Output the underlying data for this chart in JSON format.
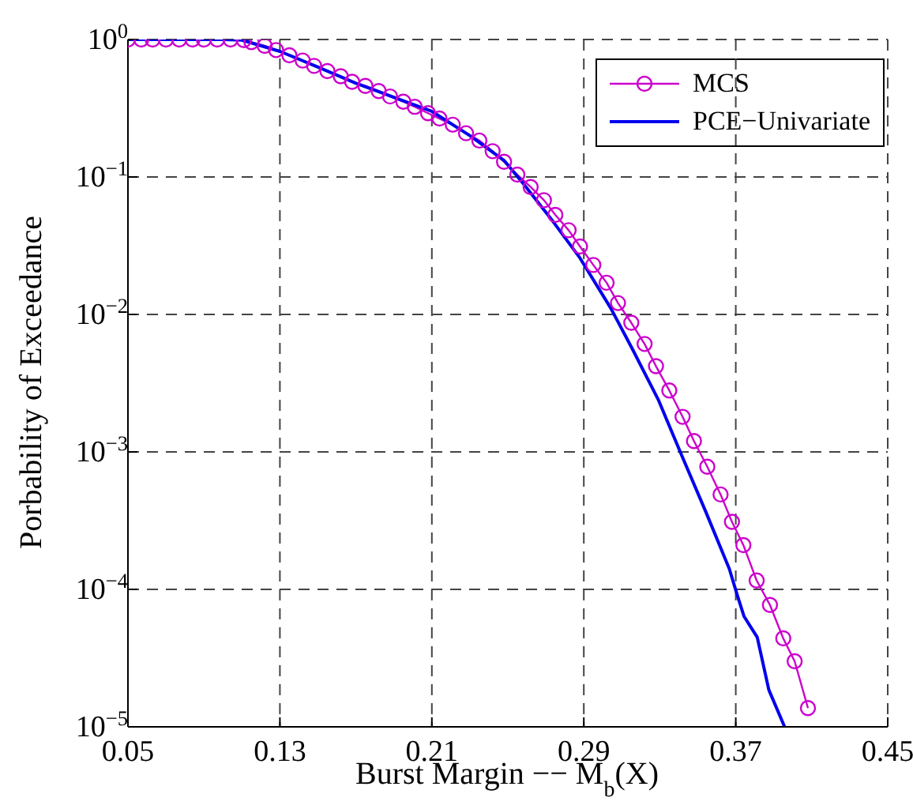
{
  "chart_data": {
    "type": "line",
    "xlabel": "Burst Margin −− M$_{b}$(X)",
    "ylabel": "Porbability of  Exceedance",
    "log": "y",
    "grid": true,
    "legend": "top right",
    "line_style": "solid",
    "xlim": [
      0.05,
      0.45
    ],
    "xticks": [
      0.05,
      0.13,
      0.21,
      0.29,
      0.37,
      0.45
    ],
    "ylim": [
      1e-05,
      1
    ],
    "yticks": [
      {
        "value": 1e-05,
        "label": "10$^{−5}$"
      },
      {
        "value": 0.0001,
        "label": "10$^{−4}$"
      },
      {
        "value": 0.001,
        "label": "10$^{−3}$"
      },
      {
        "value": 0.01,
        "label": "10$^{−2}$"
      },
      {
        "value": 0.1,
        "label": "10$^{−1}$"
      },
      {
        "value": 1,
        "label": "10$^{0}$"
      }
    ],
    "series": [
      {
        "name": "MCS",
        "color": "#cc00cc",
        "marker": "circle",
        "x": [
          0.05,
          0.057,
          0.063,
          0.07,
          0.077,
          0.084,
          0.09,
          0.097,
          0.104,
          0.111,
          0.115,
          0.122,
          0.128,
          0.135,
          0.142,
          0.148,
          0.155,
          0.162,
          0.168,
          0.175,
          0.182,
          0.188,
          0.195,
          0.201,
          0.208,
          0.214,
          0.221,
          0.228,
          0.235,
          0.242,
          0.248,
          0.255,
          0.262,
          0.269,
          0.275,
          0.282,
          0.288,
          0.295,
          0.302,
          0.308,
          0.315,
          0.322,
          0.328,
          0.335,
          0.342,
          0.348,
          0.355,
          0.362,
          0.368,
          0.374,
          0.381,
          0.388,
          0.395,
          0.401,
          0.408
        ],
        "values": [
          1,
          1,
          1,
          1,
          1,
          1,
          1,
          1,
          1,
          0.99,
          0.957,
          0.9,
          0.838,
          0.767,
          0.703,
          0.643,
          0.589,
          0.54,
          0.493,
          0.46,
          0.422,
          0.385,
          0.353,
          0.324,
          0.291,
          0.266,
          0.24,
          0.208,
          0.184,
          0.154,
          0.129,
          0.104,
          0.0845,
          0.0678,
          0.053,
          0.041,
          0.0312,
          0.0229,
          0.017,
          0.0121,
          0.0087,
          0.0061,
          0.0042,
          0.0028,
          0.0018,
          0.0012,
          0.00078,
          0.00049,
          0.00031,
          0.00021,
          0.000116,
          7.7e-05,
          4.4e-05,
          3e-05,
          1.37e-05
        ]
      },
      {
        "name": "PCE−Univariate",
        "color": "#0000ee",
        "marker": "none",
        "x": [
          0.05,
          0.1,
          0.11,
          0.13,
          0.15,
          0.17,
          0.19,
          0.21,
          0.23,
          0.248,
          0.2585,
          0.2737,
          0.288,
          0.3042,
          0.3153,
          0.3292,
          0.3416,
          0.3541,
          0.3666,
          0.3708,
          0.3743,
          0.3813,
          0.3874,
          0.3957
        ],
        "values": [
          1,
          1,
          0.99,
          0.82,
          0.63,
          0.48,
          0.38,
          0.3,
          0.2,
          0.132,
          0.0883,
          0.0476,
          0.0257,
          0.0111,
          0.0057,
          0.0024,
          0.00094,
          0.00037,
          0.000141,
          9.08e-05,
          6.38e-05,
          4.48e-05,
          1.86e-05,
          1e-05
        ]
      }
    ]
  }
}
